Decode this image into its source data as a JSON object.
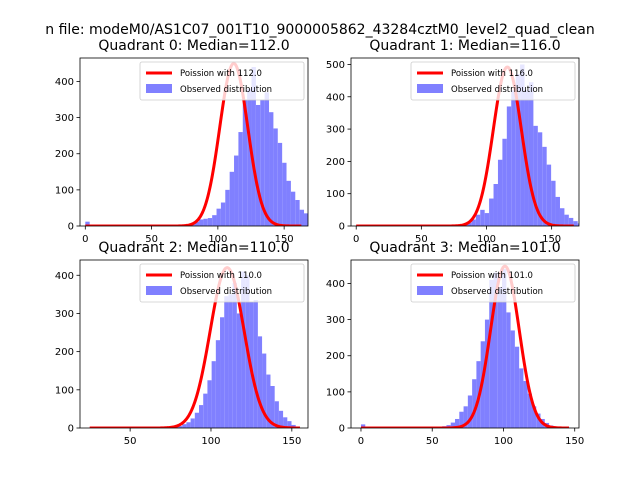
{
  "figure": {
    "suptitle": "n file: modeM0/AS1C07_001T10_9000005862_43284cztM0_level2_quad_clean",
    "line_color": "#ff0000",
    "bar_color": "#8080ff"
  },
  "chart_data": [
    {
      "type": "bar",
      "title": "Quadrant 0: Median=112.0",
      "xlim": [
        -4,
        168
      ],
      "ylim": [
        0,
        465
      ],
      "xticks": [
        0,
        50,
        100,
        150
      ],
      "yticks": [
        0,
        100,
        200,
        300,
        400
      ],
      "legend_position": "top-right",
      "line": {
        "name": "Poission with 112.0",
        "mean": 112.0,
        "peak": 450,
        "x_range": [
          0,
          163
        ]
      },
      "hist": {
        "name": "Observed distribution",
        "bin_start": 0,
        "bin_width": 3.3,
        "counts": [
          12,
          2,
          0,
          1,
          1,
          1,
          1,
          1,
          1,
          1,
          1,
          1,
          1,
          1,
          1,
          1,
          1,
          1,
          1,
          1,
          1,
          2,
          3,
          5,
          8,
          12,
          18,
          20,
          22,
          30,
          48,
          65,
          100,
          150,
          195,
          260,
          350,
          380,
          440,
          335,
          350,
          370,
          315,
          270,
          230,
          175,
          125,
          95,
          72,
          45,
          35,
          25,
          15,
          10,
          5,
          3,
          2,
          1,
          1
        ]
      }
    },
    {
      "type": "bar",
      "title": "Quadrant 1: Median=116.0",
      "xlim": [
        -4,
        171
      ],
      "ylim": [
        0,
        520
      ],
      "xticks": [
        0,
        50,
        100,
        150
      ],
      "yticks": [
        0,
        100,
        200,
        300,
        400,
        500
      ],
      "legend_position": "top-right",
      "line": {
        "name": "Poission with 116.0",
        "mean": 116.0,
        "peak": 492,
        "x_range": [
          0,
          167
        ]
      },
      "hist": {
        "name": "Observed distribution",
        "bin_start": 0,
        "bin_width": 3.4,
        "counts": [
          3,
          1,
          1,
          1,
          1,
          1,
          1,
          1,
          1,
          1,
          1,
          1,
          1,
          1,
          1,
          1,
          1,
          1,
          1,
          1,
          1,
          1,
          1,
          3,
          5,
          10,
          20,
          35,
          50,
          40,
          85,
          130,
          205,
          270,
          370,
          420,
          470,
          500,
          420,
          445,
          310,
          290,
          245,
          190,
          140,
          90,
          55,
          35,
          25,
          15,
          8,
          4,
          2,
          1
        ]
      }
    },
    {
      "type": "bar",
      "title": "Quadrant 2: Median=110.0",
      "xlim": [
        19,
        160
      ],
      "ylim": [
        0,
        440
      ],
      "xticks": [
        50,
        100,
        150
      ],
      "yticks": [
        0,
        100,
        200,
        300,
        400
      ],
      "legend_position": "top-right",
      "line": {
        "name": "Poission with 110.0",
        "mean": 110.0,
        "peak": 420,
        "x_range": [
          25,
          155
        ]
      },
      "hist": {
        "name": "Observed distribution",
        "bin_start": 25,
        "bin_width": 2.6,
        "counts": [
          2,
          1,
          1,
          1,
          1,
          1,
          1,
          1,
          1,
          1,
          1,
          1,
          1,
          1,
          1,
          1,
          1,
          1,
          1,
          2,
          3,
          5,
          10,
          15,
          25,
          40,
          60,
          90,
          125,
          175,
          230,
          290,
          345,
          350,
          380,
          300,
          410,
          400,
          330,
          335,
          240,
          195,
          140,
          110,
          70,
          45,
          28,
          18,
          8,
          4
        ]
      }
    },
    {
      "type": "bar",
      "title": "Quadrant 3: Median=101.0",
      "xlim": [
        -7,
        153
      ],
      "ylim": [
        0,
        465
      ],
      "xticks": [
        0,
        50,
        100,
        150
      ],
      "yticks": [
        0,
        100,
        200,
        300,
        400
      ],
      "legend_position": "top-right",
      "line": {
        "name": "Poission with 101.0",
        "mean": 101.0,
        "peak": 448,
        "x_range": [
          0,
          146
        ]
      },
      "hist": {
        "name": "Observed distribution",
        "bin_start": 0,
        "bin_width": 3.0,
        "counts": [
          10,
          1,
          1,
          1,
          1,
          1,
          1,
          1,
          1,
          1,
          1,
          1,
          1,
          1,
          1,
          1,
          1,
          2,
          3,
          5,
          8,
          15,
          25,
          45,
          60,
          90,
          135,
          185,
          240,
          300,
          410,
          430,
          390,
          440,
          320,
          270,
          225,
          165,
          130,
          95,
          60,
          40,
          25,
          14,
          7,
          3,
          1,
          1,
          1
        ]
      }
    }
  ]
}
